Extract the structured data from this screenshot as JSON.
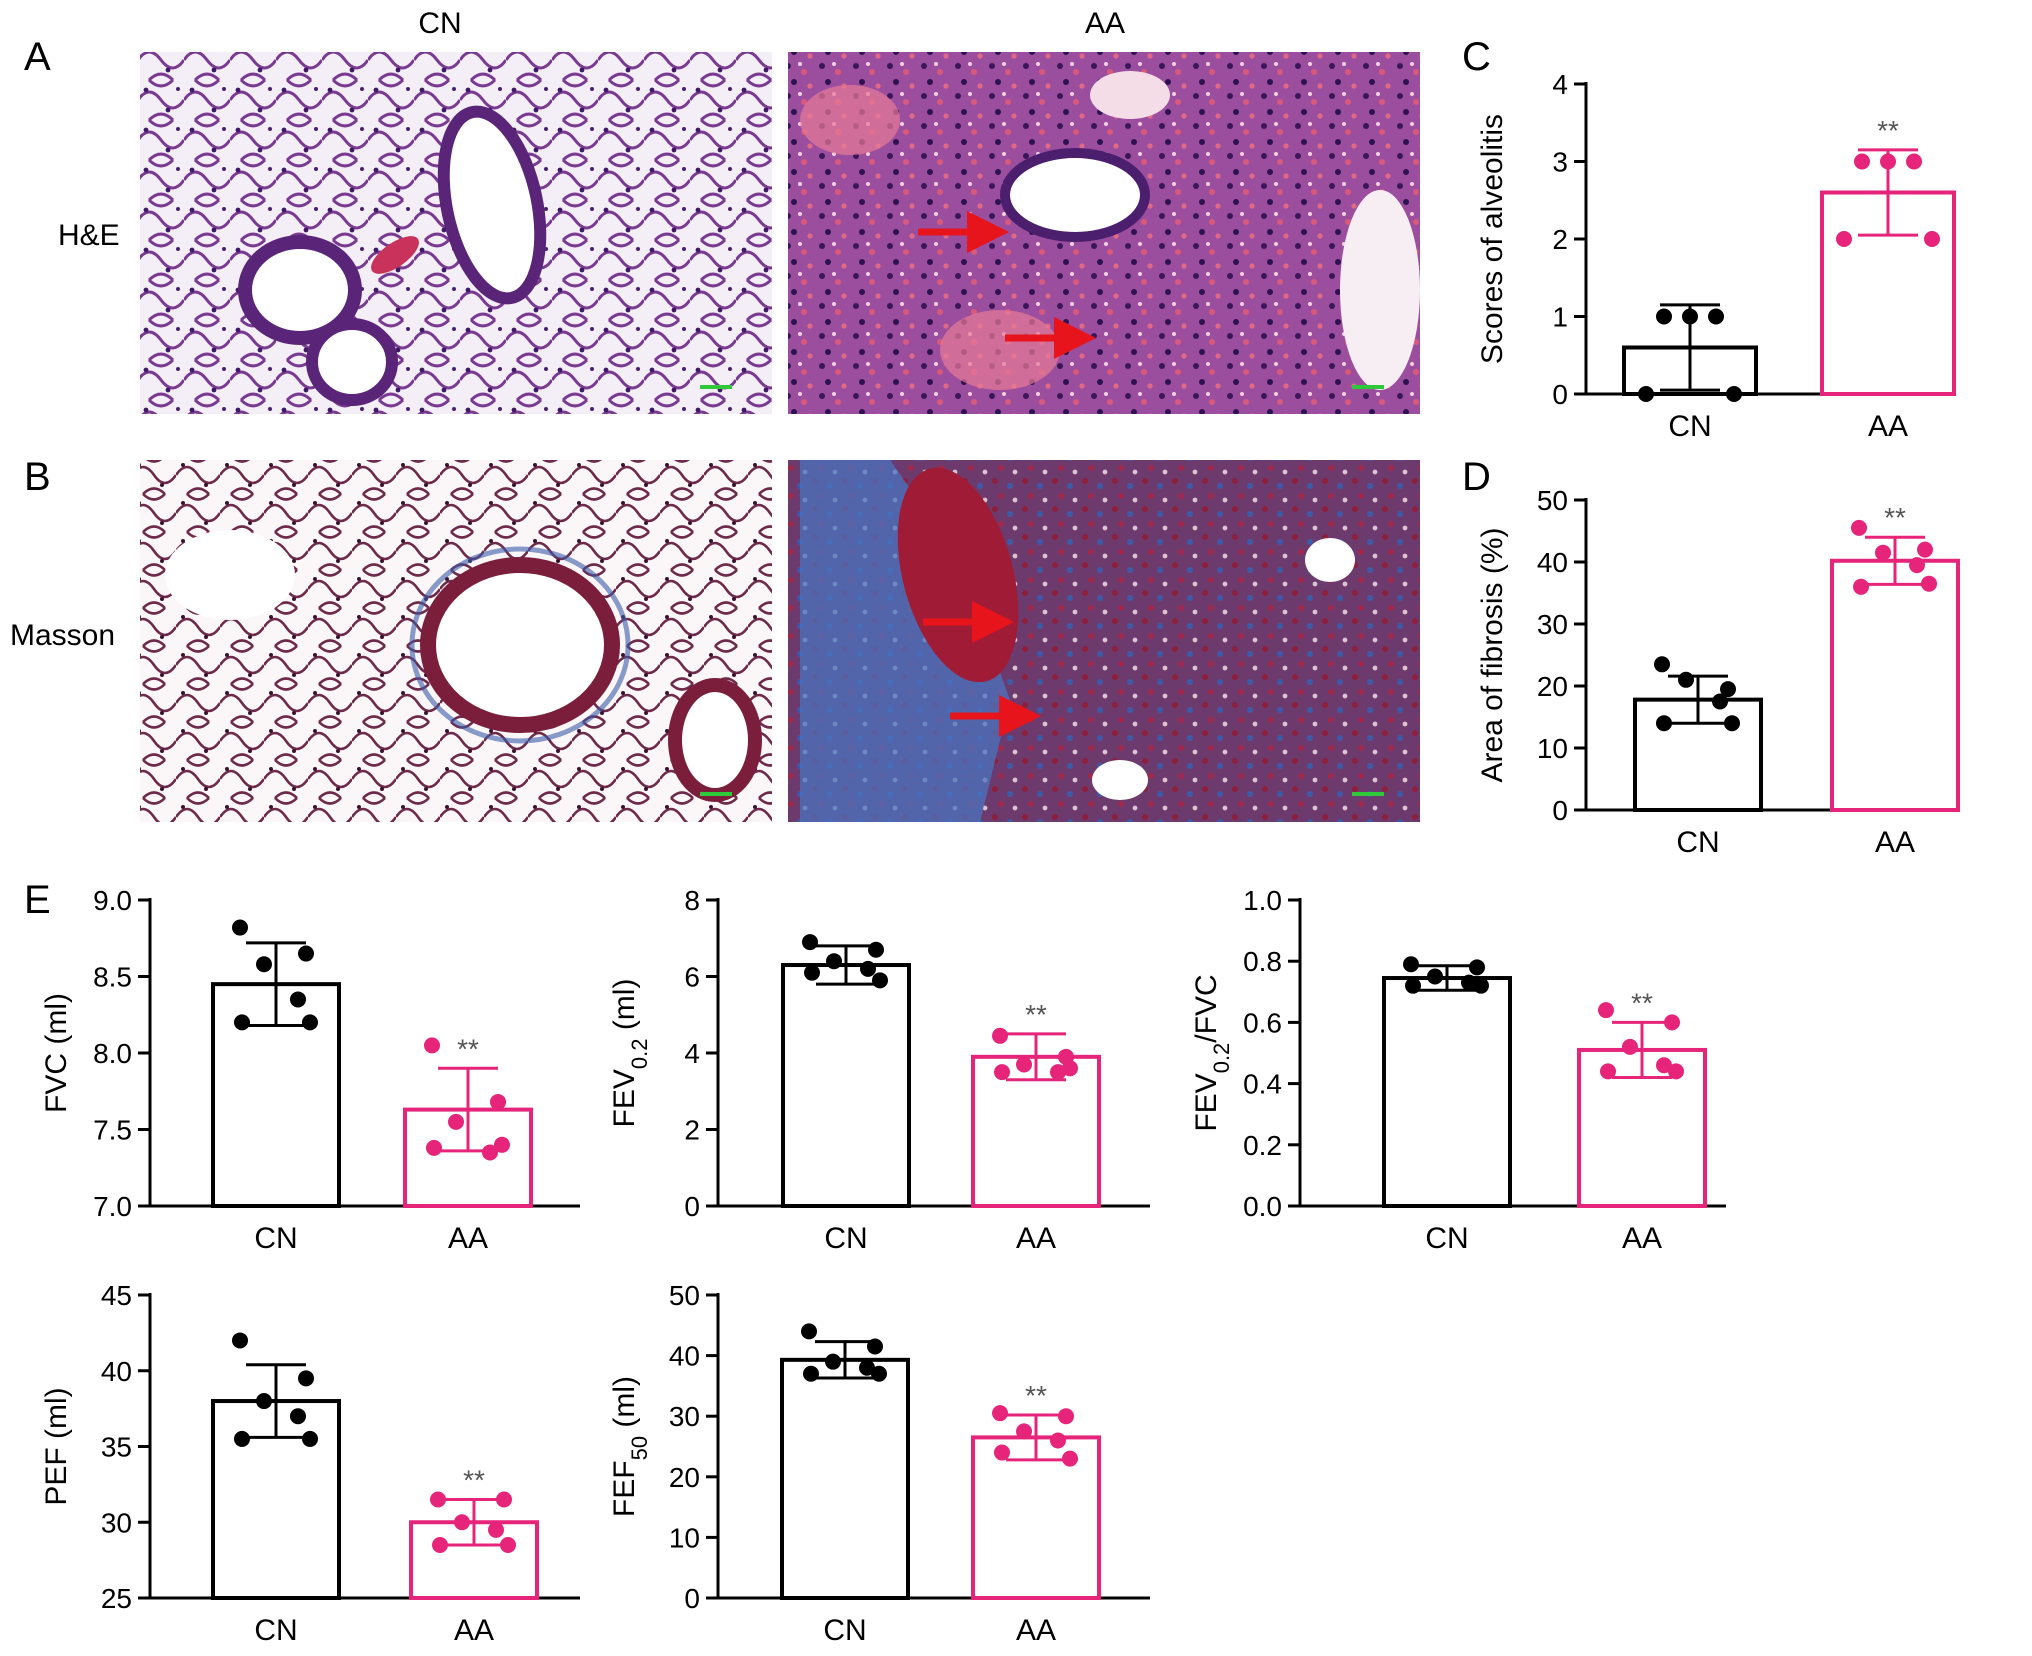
{
  "panel_letters": {
    "a": "A",
    "b": "B",
    "c": "C",
    "d": "D",
    "e": "E"
  },
  "histology": {
    "col_labels": [
      "CN",
      "AA"
    ],
    "row_labels": [
      "H&E",
      "Masson"
    ]
  },
  "colors": {
    "cn": "#000000",
    "aa": "#e5247a",
    "arrow": "#e8141c",
    "scalebar": "#2ec83a"
  },
  "chart_data": [
    {
      "id": "C",
      "type": "bar",
      "categories": [
        "CN",
        "AA"
      ],
      "values": [
        0.6,
        2.6
      ],
      "errors": [
        0.55,
        0.55
      ],
      "points": [
        [
          1,
          1,
          0,
          0,
          1
        ],
        [
          3,
          3,
          2,
          2,
          3
        ]
      ],
      "ylabel": "Scores of alveolitis",
      "ylabel_sub": "",
      "ylabel_post": "",
      "ylim": [
        0,
        4
      ],
      "ticks": [
        "0",
        "1",
        "2",
        "3",
        "4"
      ],
      "significance": "**"
    },
    {
      "id": "D",
      "type": "bar",
      "categories": [
        "CN",
        "AA"
      ],
      "values": [
        17.8,
        40.2
      ],
      "errors": [
        3.8,
        3.8
      ],
      "points": [
        [
          23.5,
          19.5,
          21,
          17.5,
          14,
          14
        ],
        [
          45.5,
          42,
          41.5,
          39.5,
          36,
          36.5
        ]
      ],
      "ylabel": "Area of fibrosis (%)",
      "ylabel_sub": "",
      "ylabel_post": "",
      "ylim": [
        0,
        50
      ],
      "ticks": [
        "0",
        "10",
        "20",
        "30",
        "40",
        "50"
      ],
      "significance": "**"
    },
    {
      "id": "FVC",
      "type": "bar",
      "categories": [
        "CN",
        "AA"
      ],
      "values": [
        8.45,
        7.63
      ],
      "errors": [
        0.27,
        0.27
      ],
      "points": [
        [
          8.82,
          8.65,
          8.58,
          8.35,
          8.2,
          8.2
        ],
        [
          8.05,
          7.68,
          7.55,
          7.35,
          7.38,
          7.4
        ]
      ],
      "ylabel": "FVC (ml)",
      "ylabel_sub": "",
      "ylabel_post": "",
      "ylim": [
        7,
        9
      ],
      "ticks": [
        "7.0",
        "7.5",
        "8.0",
        "8.5",
        "9.0"
      ],
      "significance": "**"
    },
    {
      "id": "FEV02",
      "type": "bar",
      "categories": [
        "CN",
        "AA"
      ],
      "values": [
        6.3,
        3.9
      ],
      "errors": [
        0.5,
        0.6
      ],
      "points": [
        [
          6.9,
          6.7,
          6.4,
          6.2,
          6.1,
          5.9
        ],
        [
          4.45,
          3.9,
          3.7,
          3.5,
          3.5,
          3.6
        ]
      ],
      "ylabel": "FEV",
      "ylabel_sub": "0.2",
      "ylabel_post": " (ml)",
      "ylim": [
        0,
        8
      ],
      "ticks": [
        "0",
        "2",
        "4",
        "6",
        "8"
      ],
      "significance": "**"
    },
    {
      "id": "FEVFVC",
      "type": "bar",
      "categories": [
        "CN",
        "AA"
      ],
      "values": [
        0.745,
        0.51
      ],
      "errors": [
        0.04,
        0.09
      ],
      "points": [
        [
          0.79,
          0.78,
          0.75,
          0.73,
          0.72,
          0.72
        ],
        [
          0.64,
          0.6,
          0.52,
          0.46,
          0.44,
          0.44
        ]
      ],
      "ylabel": "FEV",
      "ylabel_sub": "0.2",
      "ylabel_post": "/FVC",
      "ylim": [
        0,
        1
      ],
      "ticks": [
        "0.0",
        "0.2",
        "0.4",
        "0.6",
        "0.8",
        "1.0"
      ],
      "significance": "**"
    },
    {
      "id": "PEF",
      "type": "bar",
      "categories": [
        "CN",
        "AA"
      ],
      "values": [
        38.0,
        30.0
      ],
      "errors": [
        2.4,
        1.5
      ],
      "points": [
        [
          42,
          39.5,
          38,
          37,
          35.5,
          35.5
        ],
        [
          31.5,
          31.5,
          30,
          29.5,
          28.5,
          28.5
        ]
      ],
      "ylabel": "PEF (ml)",
      "ylabel_sub": "",
      "ylabel_post": "",
      "ylim": [
        25,
        45
      ],
      "ticks": [
        "25",
        "30",
        "35",
        "40",
        "45"
      ],
      "significance": "**"
    },
    {
      "id": "FEF50",
      "type": "bar",
      "categories": [
        "CN",
        "AA"
      ],
      "values": [
        39.3,
        26.5
      ],
      "errors": [
        3.0,
        3.7
      ],
      "points": [
        [
          44,
          41.5,
          39,
          38,
          37,
          37
        ],
        [
          30.5,
          30,
          27.5,
          26,
          24,
          23
        ]
      ],
      "ylabel": "FEF",
      "ylabel_sub": "50",
      "ylabel_post": " (ml)",
      "ylim": [
        0,
        50
      ],
      "ticks": [
        "0",
        "10",
        "20",
        "30",
        "40",
        "50"
      ],
      "significance": "**"
    }
  ]
}
